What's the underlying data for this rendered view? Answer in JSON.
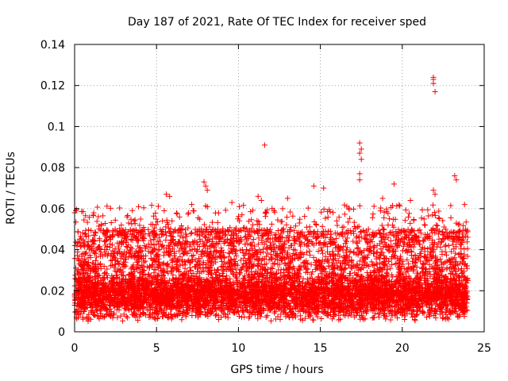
{
  "chart_data": {
    "type": "scatter",
    "title": "Day 187 of 2021, Rate Of TEC Index for receiver sped",
    "xlabel": "GPS time / hours",
    "ylabel": "ROTI / TECUs",
    "xlim": [
      0,
      25
    ],
    "ylim": [
      0,
      0.14
    ],
    "grid": true,
    "marker": "+",
    "color": "#ff0000",
    "x_ticks": [
      0,
      5,
      10,
      15,
      20,
      25
    ],
    "x_tick_labels": [
      "0",
      "5",
      "10",
      "15",
      "20",
      "25"
    ],
    "y_ticks": [
      0,
      0.02,
      0.04,
      0.06,
      0.08,
      0.1,
      0.12,
      0.14
    ],
    "y_tick_labels": [
      "0",
      "0.02",
      "0.04",
      "0.06",
      "0.08",
      "0.1",
      "0.12",
      "0.14"
    ],
    "data_extent": {
      "x_min": 0,
      "x_max": 24,
      "y_min": 0.003,
      "y_typical": [
        0.008,
        0.035
      ]
    },
    "notable_points": [
      {
        "x": 11.6,
        "y": 0.091
      },
      {
        "x": 17.4,
        "y": 0.092
      },
      {
        "x": 17.5,
        "y": 0.089
      },
      {
        "x": 17.4,
        "y": 0.087
      },
      {
        "x": 17.5,
        "y": 0.084
      },
      {
        "x": 17.4,
        "y": 0.077
      },
      {
        "x": 17.4,
        "y": 0.074
      },
      {
        "x": 21.9,
        "y": 0.124
      },
      {
        "x": 21.9,
        "y": 0.123
      },
      {
        "x": 21.9,
        "y": 0.121
      },
      {
        "x": 22.0,
        "y": 0.117
      },
      {
        "x": 7.9,
        "y": 0.073
      },
      {
        "x": 8.0,
        "y": 0.071
      },
      {
        "x": 8.1,
        "y": 0.069
      },
      {
        "x": 14.6,
        "y": 0.071
      },
      {
        "x": 15.2,
        "y": 0.07
      },
      {
        "x": 19.5,
        "y": 0.072
      },
      {
        "x": 23.2,
        "y": 0.076
      },
      {
        "x": 23.3,
        "y": 0.074
      },
      {
        "x": 5.6,
        "y": 0.067
      },
      {
        "x": 5.8,
        "y": 0.066
      },
      {
        "x": 11.2,
        "y": 0.066
      },
      {
        "x": 11.4,
        "y": 0.064
      },
      {
        "x": 13.0,
        "y": 0.065
      },
      {
        "x": 21.9,
        "y": 0.069
      },
      {
        "x": 22.0,
        "y": 0.067
      },
      {
        "x": 18.8,
        "y": 0.065
      },
      {
        "x": 20.5,
        "y": 0.064
      },
      {
        "x": 0.0,
        "y": 0.058
      },
      {
        "x": 3.2,
        "y": 0.056
      },
      {
        "x": 3.3,
        "y": 0.053
      },
      {
        "x": 9.6,
        "y": 0.063
      },
      {
        "x": 12.7,
        "y": 0.06
      },
      {
        "x": 16.0,
        "y": 0.054
      },
      {
        "x": 23.8,
        "y": 0.062
      }
    ],
    "bulk_bands": [
      {
        "x_start": 0,
        "x_end": 24,
        "y_low": 0.005,
        "y_high": 0.032,
        "density": "dense"
      },
      {
        "x_start": 0,
        "x_end": 24,
        "y_low": 0.03,
        "y_high": 0.05,
        "density": "medium"
      },
      {
        "x_start": 0,
        "x_end": 24,
        "y_low": 0.045,
        "y_high": 0.062,
        "density": "sparse"
      }
    ]
  }
}
